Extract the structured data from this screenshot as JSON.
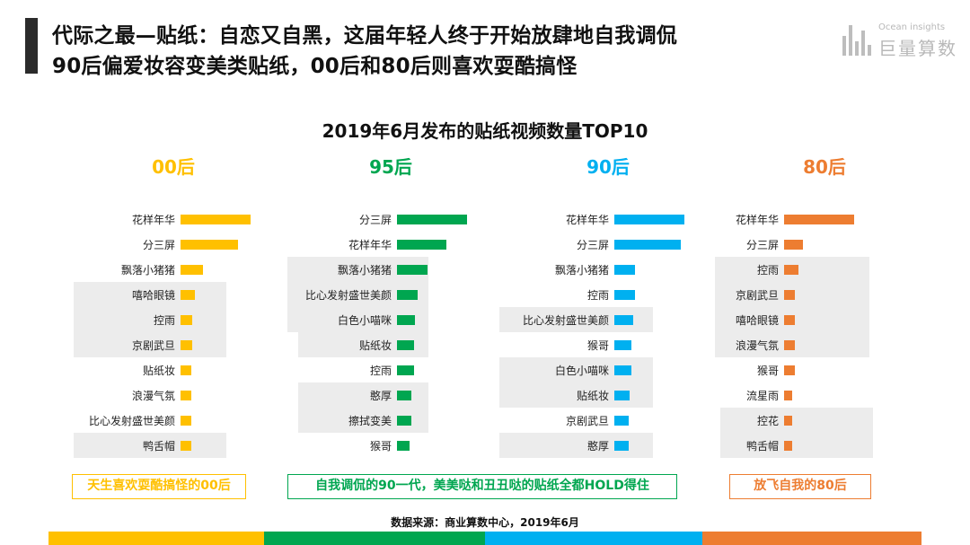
{
  "header": {
    "title_line1": "代际之最—贴纸：自恋又自黑，这届年轻人终于开始放肆地自我调侃",
    "title_line2": "90后偏爱妆容变美类贴纸，00后和80后则喜欢耍酷搞怪"
  },
  "logo": {
    "en": "Ocean insights",
    "cn": "巨量算数"
  },
  "chart_data": {
    "type": "bar",
    "title": "2019年6月发布的贴纸视频数量TOP10",
    "panels": [
      {
        "label": "00后",
        "color": "#FFC000",
        "categories": [
          "花样年华",
          "分三屏",
          "飘落小猪猪",
          "嘻哈眼镜",
          "控雨",
          "京剧武旦",
          "贴纸妆",
          "浪漫气氛",
          "比心发射盛世美颜",
          "鸭舌帽"
        ],
        "values": [
          100,
          82,
          32,
          20,
          17,
          17,
          15,
          15,
          15,
          15
        ],
        "shaded_rows": [
          3,
          4,
          5,
          9
        ],
        "summary": "天生喜欢耍酷搞怪的00后"
      },
      {
        "label": "95后",
        "color": "#00A650",
        "categories": [
          "分三屏",
          "花样年华",
          "飘落小猪猪",
          "比心发射盛世美颜",
          "白色小喵咪",
          "贴纸妆",
          "控雨",
          "憨厚",
          "擦拭变美",
          "猴哥"
        ],
        "values": [
          100,
          71,
          44,
          30,
          26,
          24,
          24,
          20,
          20,
          18
        ],
        "shaded_rows": [
          2,
          3,
          4,
          5,
          7,
          8
        ],
        "summary": "自我调侃的90一代，美美哒和丑丑哒的贴纸全都HOLD得住"
      },
      {
        "label": "90后",
        "color": "#00B0F0",
        "categories": [
          "花样年华",
          "分三屏",
          "飘落小猪猪",
          "控雨",
          "比心发射盛世美颜",
          "猴哥",
          "白色小喵咪",
          "贴纸妆",
          "京剧武旦",
          "憨厚"
        ],
        "values": [
          100,
          95,
          30,
          30,
          27,
          24,
          24,
          22,
          20,
          20
        ],
        "shaded_rows": [
          4,
          6,
          7,
          9
        ],
        "summary": ""
      },
      {
        "label": "80后",
        "color": "#ED7D31",
        "categories": [
          "花样年华",
          "分三屏",
          "控雨",
          "京剧武旦",
          "嘻哈眼镜",
          "浪漫气氛",
          "猴哥",
          "流星雨",
          "控花",
          "鸭舌帽"
        ],
        "values": [
          100,
          27,
          20,
          16,
          16,
          16,
          16,
          11,
          11,
          11
        ],
        "shaded_rows": [
          2,
          3,
          4,
          5,
          8,
          9
        ],
        "summary": "放飞自我的80后"
      }
    ]
  },
  "summary_spanning": "自我调侃的90一代，美美哒和丑丑哒的贴纸全都HOLD得住",
  "source": "数据来源：商业算数中心，2019年6月"
}
